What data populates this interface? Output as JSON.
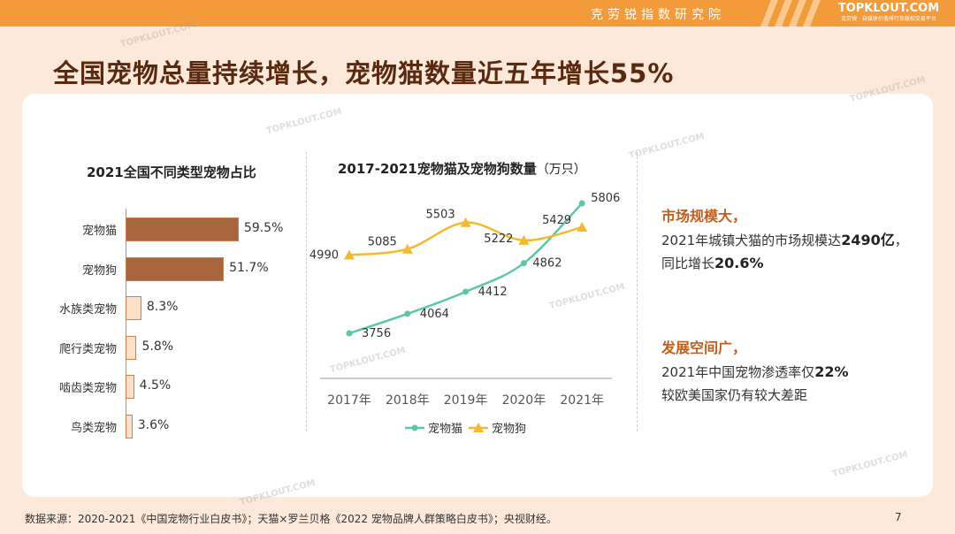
{
  "header": {
    "institute": "克劳锐指数研究院",
    "logo": "TOPKLOUT.COM",
    "logo_sub": "克劳锐 · 自媒体价值排行及版权交易平台"
  },
  "page_title": "全国宠物总量持续增长，宠物猫数量近五年增长55%",
  "watermark": "TOPKLOUT.COM",
  "colors": {
    "cat": "#5cc8a0",
    "dog": "#f5b82e",
    "bar_dark": "#a8643a",
    "bar_light": "#fde0c8",
    "accent": "#c1601e"
  },
  "chart_data": [
    {
      "type": "bar",
      "orientation": "horizontal",
      "title": "2021全国不同类型宠物占比",
      "categories": [
        "宠物猫",
        "宠物狗",
        "水族类宠物",
        "爬行类宠物",
        "啮齿类宠物",
        "鸟类宠物"
      ],
      "values": [
        59.5,
        51.7,
        8.3,
        5.8,
        4.5,
        3.6
      ],
      "value_labels": [
        "59.5%",
        "51.7%",
        "8.3%",
        "5.8%",
        "4.5%",
        "3.6%"
      ],
      "highlighted": [
        true,
        true,
        false,
        false,
        false,
        false
      ]
    },
    {
      "type": "line",
      "title": "2017-2021宠物猫及宠物狗数量",
      "unit": "（万只）",
      "x": [
        "2017年",
        "2018年",
        "2019年",
        "2020年",
        "2021年"
      ],
      "series": [
        {
          "name": "宠物猫",
          "values": [
            3756,
            4064,
            4412,
            4862,
            5806
          ],
          "color": "#5cc8a0",
          "marker": "circle"
        },
        {
          "name": "宠物狗",
          "values": [
            4990,
            5085,
            5503,
            5222,
            5429
          ],
          "color": "#f5b82e",
          "marker": "triangle"
        }
      ],
      "legend": "bottom"
    }
  ],
  "insights": [
    {
      "head": "市场规模大，",
      "line1_pre": "2021年城镇犬猫的市场规模达",
      "line1_bold": "2490亿",
      "line1_post": "，",
      "line2_pre": "同比增长",
      "line2_bold": "20.6%",
      "line2_post": ""
    },
    {
      "head": "发展空间广，",
      "line1_pre": "2021年中国宠物渗透率仅",
      "line1_bold": "22%",
      "line1_post": "",
      "line2_pre": "较欧美国家仍有较大差距",
      "line2_bold": "",
      "line2_post": ""
    }
  ],
  "footer": {
    "source": "数据来源：2020-2021《中国宠物行业白皮书》；天猫×罗兰贝格《2022 宠物品牌人群策略白皮书》；央视财经。",
    "page": "7"
  }
}
